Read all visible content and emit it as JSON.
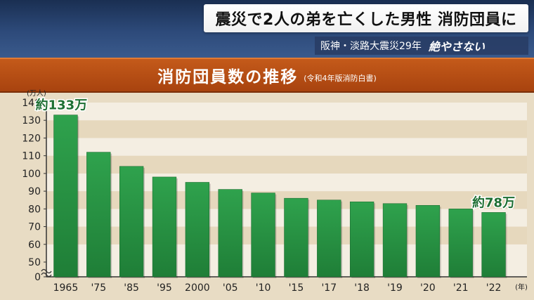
{
  "headline": "震災で2人の弟を亡くした男性 消防団員に",
  "subheadline": "阪神・淡路大震災29年",
  "program_tag": "絶やさない",
  "chart_data": {
    "type": "bar",
    "title": "消防団員数の推移",
    "source": "(令和4年版消防白書)",
    "y_unit": "(万人)",
    "x_unit": "(年)",
    "categories": [
      "1965",
      "'75",
      "'85",
      "'95",
      "2000",
      "'05",
      "'10",
      "'15",
      "'17",
      "'18",
      "'19",
      "'20",
      "'21",
      "'22"
    ],
    "values": [
      133,
      112,
      104,
      98,
      95,
      91,
      89,
      86,
      85,
      84,
      83,
      82,
      80,
      78
    ],
    "y_ticks": [
      "0",
      "50",
      "60",
      "70",
      "80",
      "90",
      "100",
      "110",
      "120",
      "130",
      "140"
    ],
    "ylim": [
      50,
      140
    ],
    "axis_break": true,
    "annotations": [
      {
        "category": "1965",
        "label": "約133万"
      },
      {
        "category": "'22",
        "label": "約78万"
      }
    ],
    "grid": true,
    "bar_color": "#2e9a48"
  }
}
